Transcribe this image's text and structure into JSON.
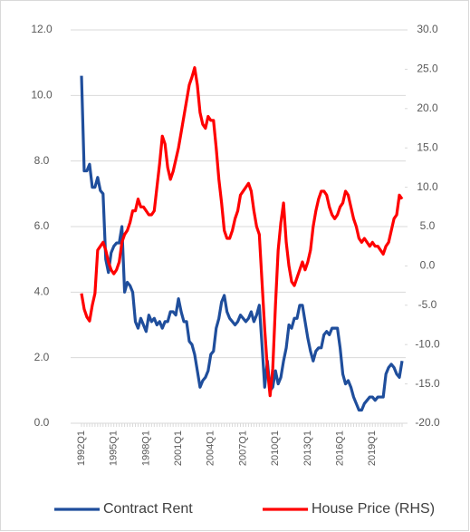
{
  "chart_data": {
    "type": "line",
    "categories": [
      "1992Q1",
      null,
      null,
      null,
      null,
      null,
      null,
      null,
      null,
      null,
      null,
      null,
      "1995Q1",
      null,
      null,
      null,
      null,
      null,
      null,
      null,
      null,
      null,
      null,
      null,
      "1998Q1",
      null,
      null,
      null,
      null,
      null,
      null,
      null,
      null,
      null,
      null,
      null,
      "2001Q1",
      null,
      null,
      null,
      null,
      null,
      null,
      null,
      null,
      null,
      null,
      null,
      "2004Q1",
      null,
      null,
      null,
      null,
      null,
      null,
      null,
      null,
      null,
      null,
      null,
      "2007Q1",
      null,
      null,
      null,
      null,
      null,
      null,
      null,
      null,
      null,
      null,
      null,
      "2010Q1",
      null,
      null,
      null,
      null,
      null,
      null,
      null,
      null,
      null,
      null,
      null,
      "2013Q1",
      null,
      null,
      null,
      null,
      null,
      null,
      null,
      null,
      null,
      null,
      null,
      "2016Q1",
      null,
      null,
      null,
      null,
      null,
      null,
      null,
      null,
      null,
      null,
      null,
      "2019Q1",
      null,
      null,
      null,
      null,
      null,
      null,
      null,
      null,
      null,
      null,
      null
    ],
    "series": [
      {
        "name": "Contract Rent",
        "color": "#1f4e9c",
        "axis": "y",
        "values": [
          10.6,
          7.7,
          7.7,
          7.9,
          7.2,
          7.2,
          7.5,
          7.1,
          7.0,
          5.0,
          4.6,
          5.2,
          5.4,
          5.5,
          5.5,
          6.0,
          4.0,
          4.3,
          4.2,
          4.0,
          3.1,
          2.9,
          3.2,
          3.0,
          2.8,
          3.3,
          3.1,
          3.2,
          3.0,
          3.1,
          2.9,
          3.1,
          3.1,
          3.4,
          3.4,
          3.3,
          3.8,
          3.4,
          3.1,
          3.1,
          2.5,
          2.4,
          2.1,
          1.6,
          1.1,
          1.3,
          1.4,
          1.6,
          2.1,
          2.2,
          2.9,
          3.2,
          3.7,
          3.9,
          3.4,
          3.2,
          3.1,
          3.0,
          3.1,
          3.3,
          3.2,
          3.1,
          3.2,
          3.4,
          3.1,
          3.3,
          3.6,
          2.4,
          1.1,
          1.9,
          1.0,
          1.1,
          1.6,
          1.2,
          1.4,
          1.9,
          2.3,
          3.0,
          2.9,
          3.2,
          3.2,
          3.6,
          3.6,
          3.1,
          2.6,
          2.2,
          1.9,
          2.2,
          2.3,
          2.3,
          2.7,
          2.8,
          2.7,
          2.9,
          2.9,
          2.9,
          2.3,
          1.5,
          1.2,
          1.3,
          1.1,
          0.8,
          0.6,
          0.4,
          0.4,
          0.6,
          0.7,
          0.8,
          0.8,
          0.7,
          0.8,
          0.8,
          0.8,
          1.5,
          1.7,
          1.8,
          1.7,
          1.5,
          1.4,
          1.9
        ]
      },
      {
        "name": "House Price (RHS)",
        "color": "#ff0000",
        "axis": "y2",
        "values": [
          -3.5,
          -5.5,
          -6.5,
          -7.0,
          -5.0,
          -3.5,
          2.0,
          2.5,
          3.0,
          2.0,
          0.5,
          -0.5,
          -1.0,
          -0.5,
          0.5,
          3.0,
          4.0,
          4.5,
          5.5,
          7.0,
          7.0,
          8.5,
          7.5,
          7.5,
          7.0,
          6.5,
          6.5,
          7.0,
          10.0,
          13.0,
          16.5,
          15.5,
          12.5,
          11.0,
          12.0,
          13.5,
          15.0,
          17.0,
          19.0,
          21.0,
          23.0,
          24.0,
          25.2,
          23.0,
          19.5,
          18.0,
          17.5,
          19.0,
          18.5,
          18.5,
          15.0,
          11.0,
          8.0,
          4.5,
          3.5,
          3.5,
          4.5,
          6.0,
          7.0,
          9.0,
          9.5,
          10.0,
          10.5,
          9.5,
          7.0,
          5.0,
          4.0,
          -2.0,
          -8.0,
          -13.0,
          -16.5,
          -13.0,
          -5.0,
          2.0,
          5.5,
          8.0,
          3.0,
          0.0,
          -2.0,
          -2.5,
          -1.5,
          -0.5,
          0.5,
          -0.5,
          0.5,
          2.0,
          5.0,
          7.0,
          8.5,
          9.5,
          9.5,
          9.0,
          7.5,
          6.5,
          6.0,
          6.5,
          7.5,
          8.0,
          9.5,
          9.0,
          7.5,
          6.0,
          5.0,
          3.5,
          3.0,
          3.5,
          3.0,
          2.5,
          3.0,
          2.5,
          2.5,
          2.0,
          1.5,
          2.5,
          3.0,
          4.5,
          6.0,
          6.5,
          9.0,
          8.5
        ]
      }
    ],
    "ylim": [
      0,
      12
    ],
    "yticks": [
      {
        "value": 0,
        "label": "0.0"
      },
      {
        "value": 2,
        "label": "2.0"
      },
      {
        "value": 4,
        "label": "4.0"
      },
      {
        "value": 6,
        "label": "6.0"
      },
      {
        "value": 8,
        "label": "8.0"
      },
      {
        "value": 10,
        "label": "10.0"
      },
      {
        "value": 12,
        "label": "12.0"
      }
    ],
    "y2lim": [
      -20,
      30
    ],
    "y2ticks": [
      {
        "value": -20,
        "label": "-20.0"
      },
      {
        "value": -15,
        "label": "-15.0"
      },
      {
        "value": -10,
        "label": "-10.0"
      },
      {
        "value": -5,
        "label": "-5.0"
      },
      {
        "value": 0,
        "label": "0.0"
      },
      {
        "value": 5,
        "label": "5.0"
      },
      {
        "value": 10,
        "label": "10.0"
      },
      {
        "value": 15,
        "label": "15.0"
      },
      {
        "value": 20,
        "label": "20.0"
      },
      {
        "value": 25,
        "label": "25.0"
      },
      {
        "value": 30,
        "label": "30.0"
      }
    ],
    "grid": true,
    "legend": "bottom"
  }
}
